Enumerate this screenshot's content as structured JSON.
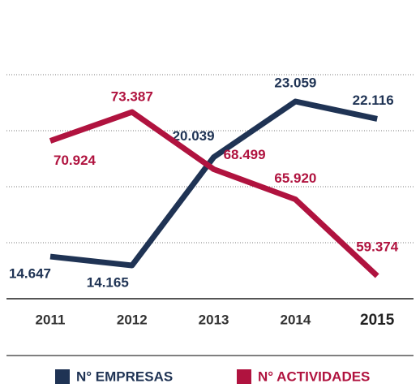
{
  "chart_data": {
    "type": "line",
    "categories": [
      "2011",
      "2012",
      "2013",
      "2014",
      "2015"
    ],
    "ylim": [
      12360,
      27550
    ],
    "y2lim": [
      57430,
      81370
    ],
    "series": [
      {
        "name": "N° EMPRESAS",
        "color": "#1f3354",
        "values": [
          14647,
          14165,
          20039,
          23059,
          22116
        ],
        "value_labels": [
          "14.647",
          "14.165",
          "20.039",
          "23.059",
          "22.116"
        ]
      },
      {
        "name": "N° ACTIVIDADES",
        "color": "#b0133f",
        "axis": "y2",
        "values": [
          70924,
          73387,
          68499,
          65920,
          59374
        ],
        "value_labels": [
          "70.924",
          "73.387",
          "68.499",
          "65.920",
          "59.374"
        ]
      }
    ]
  }
}
